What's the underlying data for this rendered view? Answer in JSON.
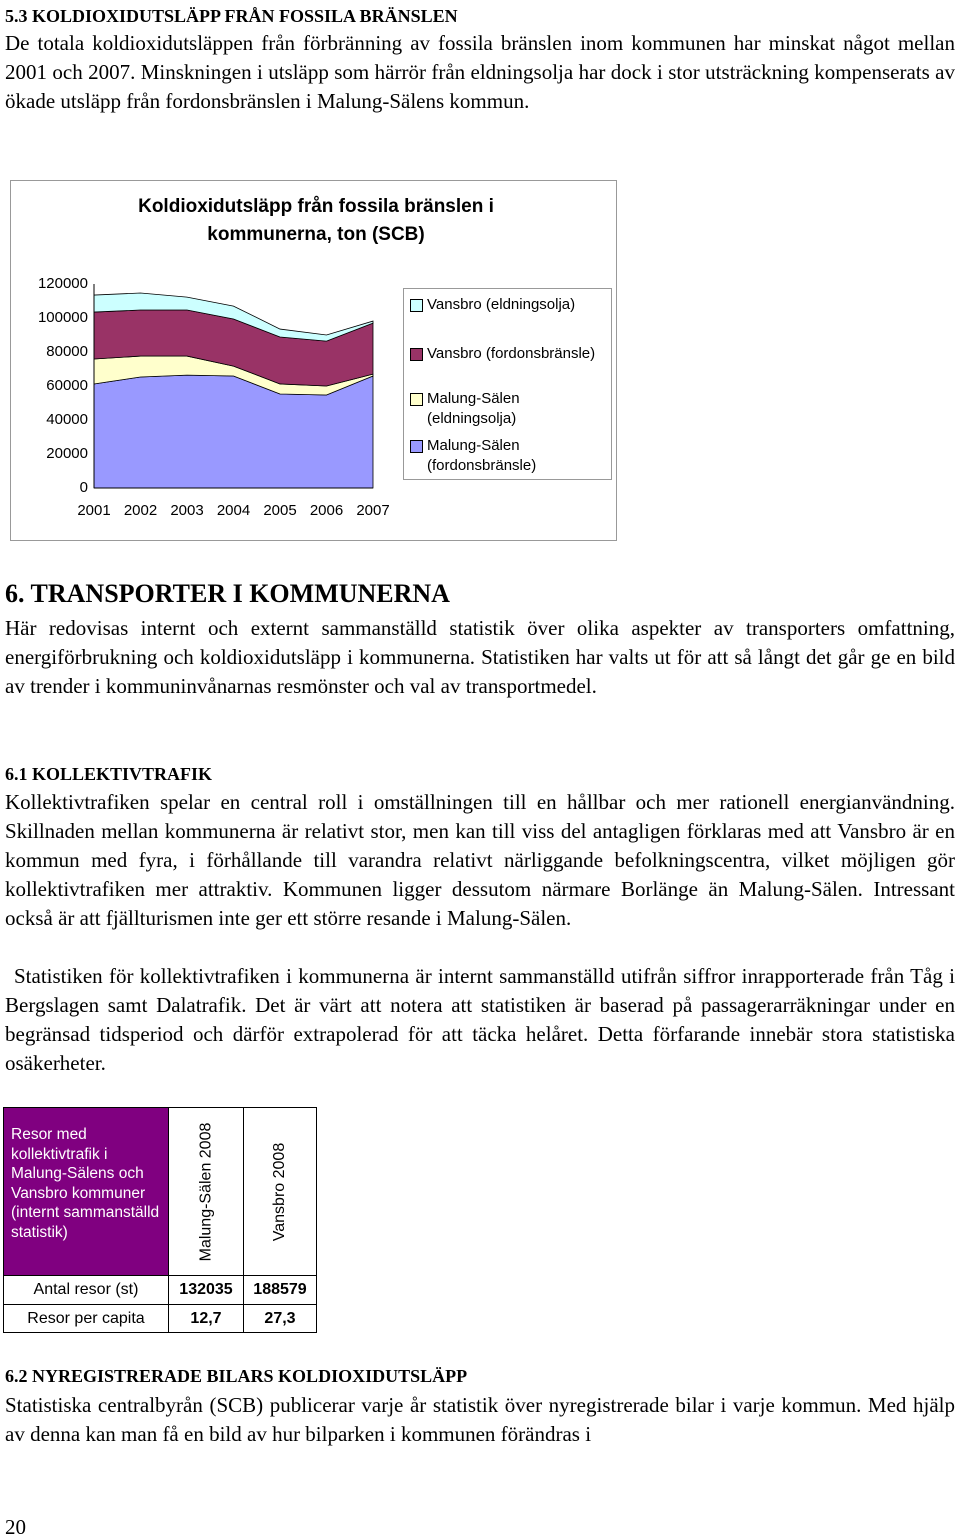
{
  "section_5_3": {
    "heading": "5.3 KOLDIOXIDUTSLÄPP FRÅN FOSSILA BRÄNSLEN",
    "paragraph": "De totala koldioxidutsläppen från förbränning av fossila bränslen inom kommunen har minskat något mellan 2001 och 2007. Minskningen i utsläpp som härrör från eldningsolja har dock i stor utsträckning kompenserats av ökade utsläpp från fordonsbränslen i Malung-Sälens kommun."
  },
  "chart_data": {
    "type": "stacked_area",
    "title": "Koldioxidutsläpp från fossila bränslen i kommunerna, ton (SCB)",
    "categories": [
      "2001",
      "2002",
      "2003",
      "2004",
      "2005",
      "2006",
      "2007"
    ],
    "series": [
      {
        "name": "Vansbro (eldningsolja)",
        "color": "#ccffff",
        "values": [
          10000,
          10000,
          7600,
          7600,
          4700,
          3600,
          1200
        ]
      },
      {
        "name": "Vansbro (fordonsbränsle)",
        "color": "#993366",
        "values": [
          27600,
          27100,
          27100,
          27700,
          27600,
          26400,
          30000
        ]
      },
      {
        "name": "Malung-Sälen (eldningsolja)",
        "color": "#ffffcc",
        "values": [
          14700,
          12300,
          11200,
          5800,
          5900,
          5300,
          1100
        ]
      },
      {
        "name": "Malung-Sälen (fordonsbränsle)",
        "color": "#9999ff",
        "values": [
          61200,
          65300,
          66400,
          65900,
          55300,
          54700,
          65900
        ]
      }
    ],
    "ylim": [
      0,
      120000
    ],
    "yticks": [
      0,
      20000,
      40000,
      60000,
      80000,
      100000,
      120000
    ],
    "grid": false,
    "legend": "right"
  },
  "section_6": {
    "heading": "6. TRANSPORTER I KOMMUNERNA",
    "paragraph": "Här redovisas internt och externt sammanställd statistik över olika aspekter av transporters omfattning, energiförbrukning och koldioxidutsläpp i kommunerna. Statistiken har valts ut för att så långt det går ge en bild av trender i kommuninvånarnas resmönster och val av transportmedel."
  },
  "section_6_1": {
    "heading": "6.1 KOLLEKTIVTRAFIK",
    "paragraphs": [
      "Kollektivtrafiken spelar en central roll i omställningen till en hållbar och mer rationell energianvändning. Skillnaden mellan kommunerna är relativt stor, men kan till viss del antagligen förklaras med att Vansbro är en kommun med fyra, i förhållande till varandra relativt närliggande befolkningscentra, vilket möjligen gör kollektivtrafiken mer attraktiv. Kommunen ligger dessutom närmare Borlänge än Malung-Sälen. Intressant också är att fjällturismen inte ger ett större resande i Malung-Sälen.",
      "Statistiken för kollektivtrafiken i kommunerna är internt sammanställd utifrån siffror inrapporterade från Tåg i Bergslagen samt Dalatrafik. Det är värt att notera att statistiken är baserad på passagerarräkningar under en begränsad tidsperiod och därför extrapolerad för att täcka helåret. Detta förfarande innebär stora statistiska osäkerheter."
    ]
  },
  "table": {
    "header": [
      "Resor med kollektivtrafik i Malung-Sälens och Vansbro kommuner (internt sammanställd statistik)",
      "Malung-Sälen 2008",
      "Vansbro 2008"
    ],
    "rows": [
      [
        "Antal resor (st)",
        "132035",
        "188579"
      ],
      [
        "Resor per capita",
        "12,7",
        "27,3"
      ]
    ]
  },
  "section_6_2": {
    "heading": "6.2 NYREGISTRERADE BILARS KOLDIOXIDUTSLÄPP",
    "paragraph": "Statistiska centralbyrån (SCB) publicerar varje år statistik över nyregistrerade bilar i varje kommun. Med hjälp av denna kan man få en bild av hur bilparken i kommunen förändras i"
  },
  "page_number": "20"
}
